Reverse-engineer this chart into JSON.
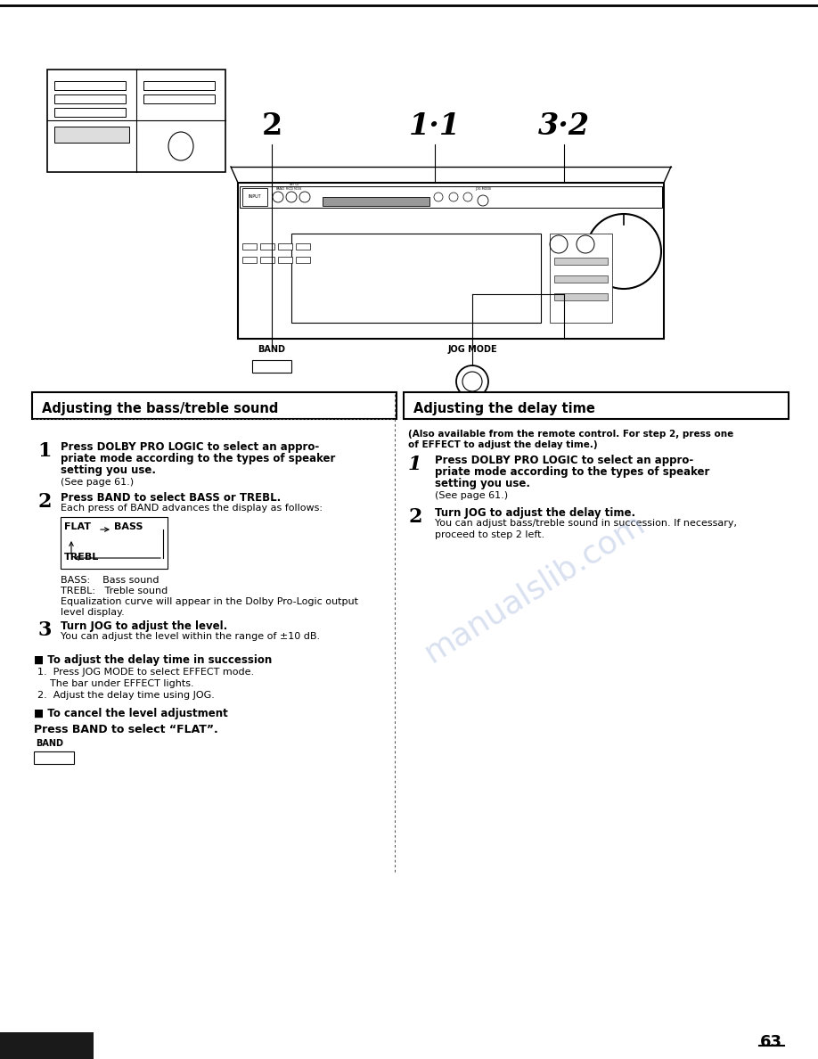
{
  "page_num": "63",
  "bg_color": "#ffffff",
  "watermark_color": "#aabbdd",
  "section_left_title": "Adjusting the bass/treble sound",
  "section_right_title": "Adjusting the delay time",
  "right_subtitle_line1": "(Also available from the remote control. For step 2, press one",
  "right_subtitle_line2": "of EFFECT to adjust the delay time.)",
  "left_steps": [
    {
      "num": "1",
      "bold_lines": [
        "Press DOLBY PRO LOGIC to select an appro-",
        "priate mode according to the types of speaker",
        "setting you use."
      ],
      "normal": "(See page 61.)"
    },
    {
      "num": "2",
      "bold_lines": [
        "Press BAND to select BASS or TREBL."
      ],
      "normal": "Each press of BAND advances the display as follows:"
    },
    {
      "num": "3",
      "bold_lines": [
        "Turn JOG to adjust the level."
      ],
      "normal": "You can adjust the level within the range of ±10 dB."
    }
  ],
  "right_steps": [
    {
      "num": "1",
      "bold_lines": [
        "Press DOLBY PRO LOGIC to select an appro-",
        "priate mode according to the types of speaker",
        "setting you use."
      ],
      "normal": "(See page 61.)"
    },
    {
      "num": "2",
      "bold_lines": [
        "Turn JOG to adjust the delay time."
      ],
      "normal_lines": [
        "You can adjust bass/treble sound in succession. If necessary,",
        "proceed to step 2 left."
      ]
    }
  ],
  "bass_labels_line1": "BASS:    Bass sound",
  "bass_labels_line2": "TREBL:   Treble sound",
  "bass_labels_line3": "Equalization curve will appear in the Dolby Pro-Logic output",
  "bass_labels_line4": "level display.",
  "bullet1_title": "■ To adjust the delay time in succession",
  "bullet1_items": [
    "1.  Press JOG MODE to select EFFECT mode.",
    "    The bar under EFFECT lights.",
    "2.  Adjust the delay time using JOG."
  ],
  "bullet2_title": "■ To cancel the level adjustment",
  "press_band_text": "Press BAND to select “FLAT”."
}
